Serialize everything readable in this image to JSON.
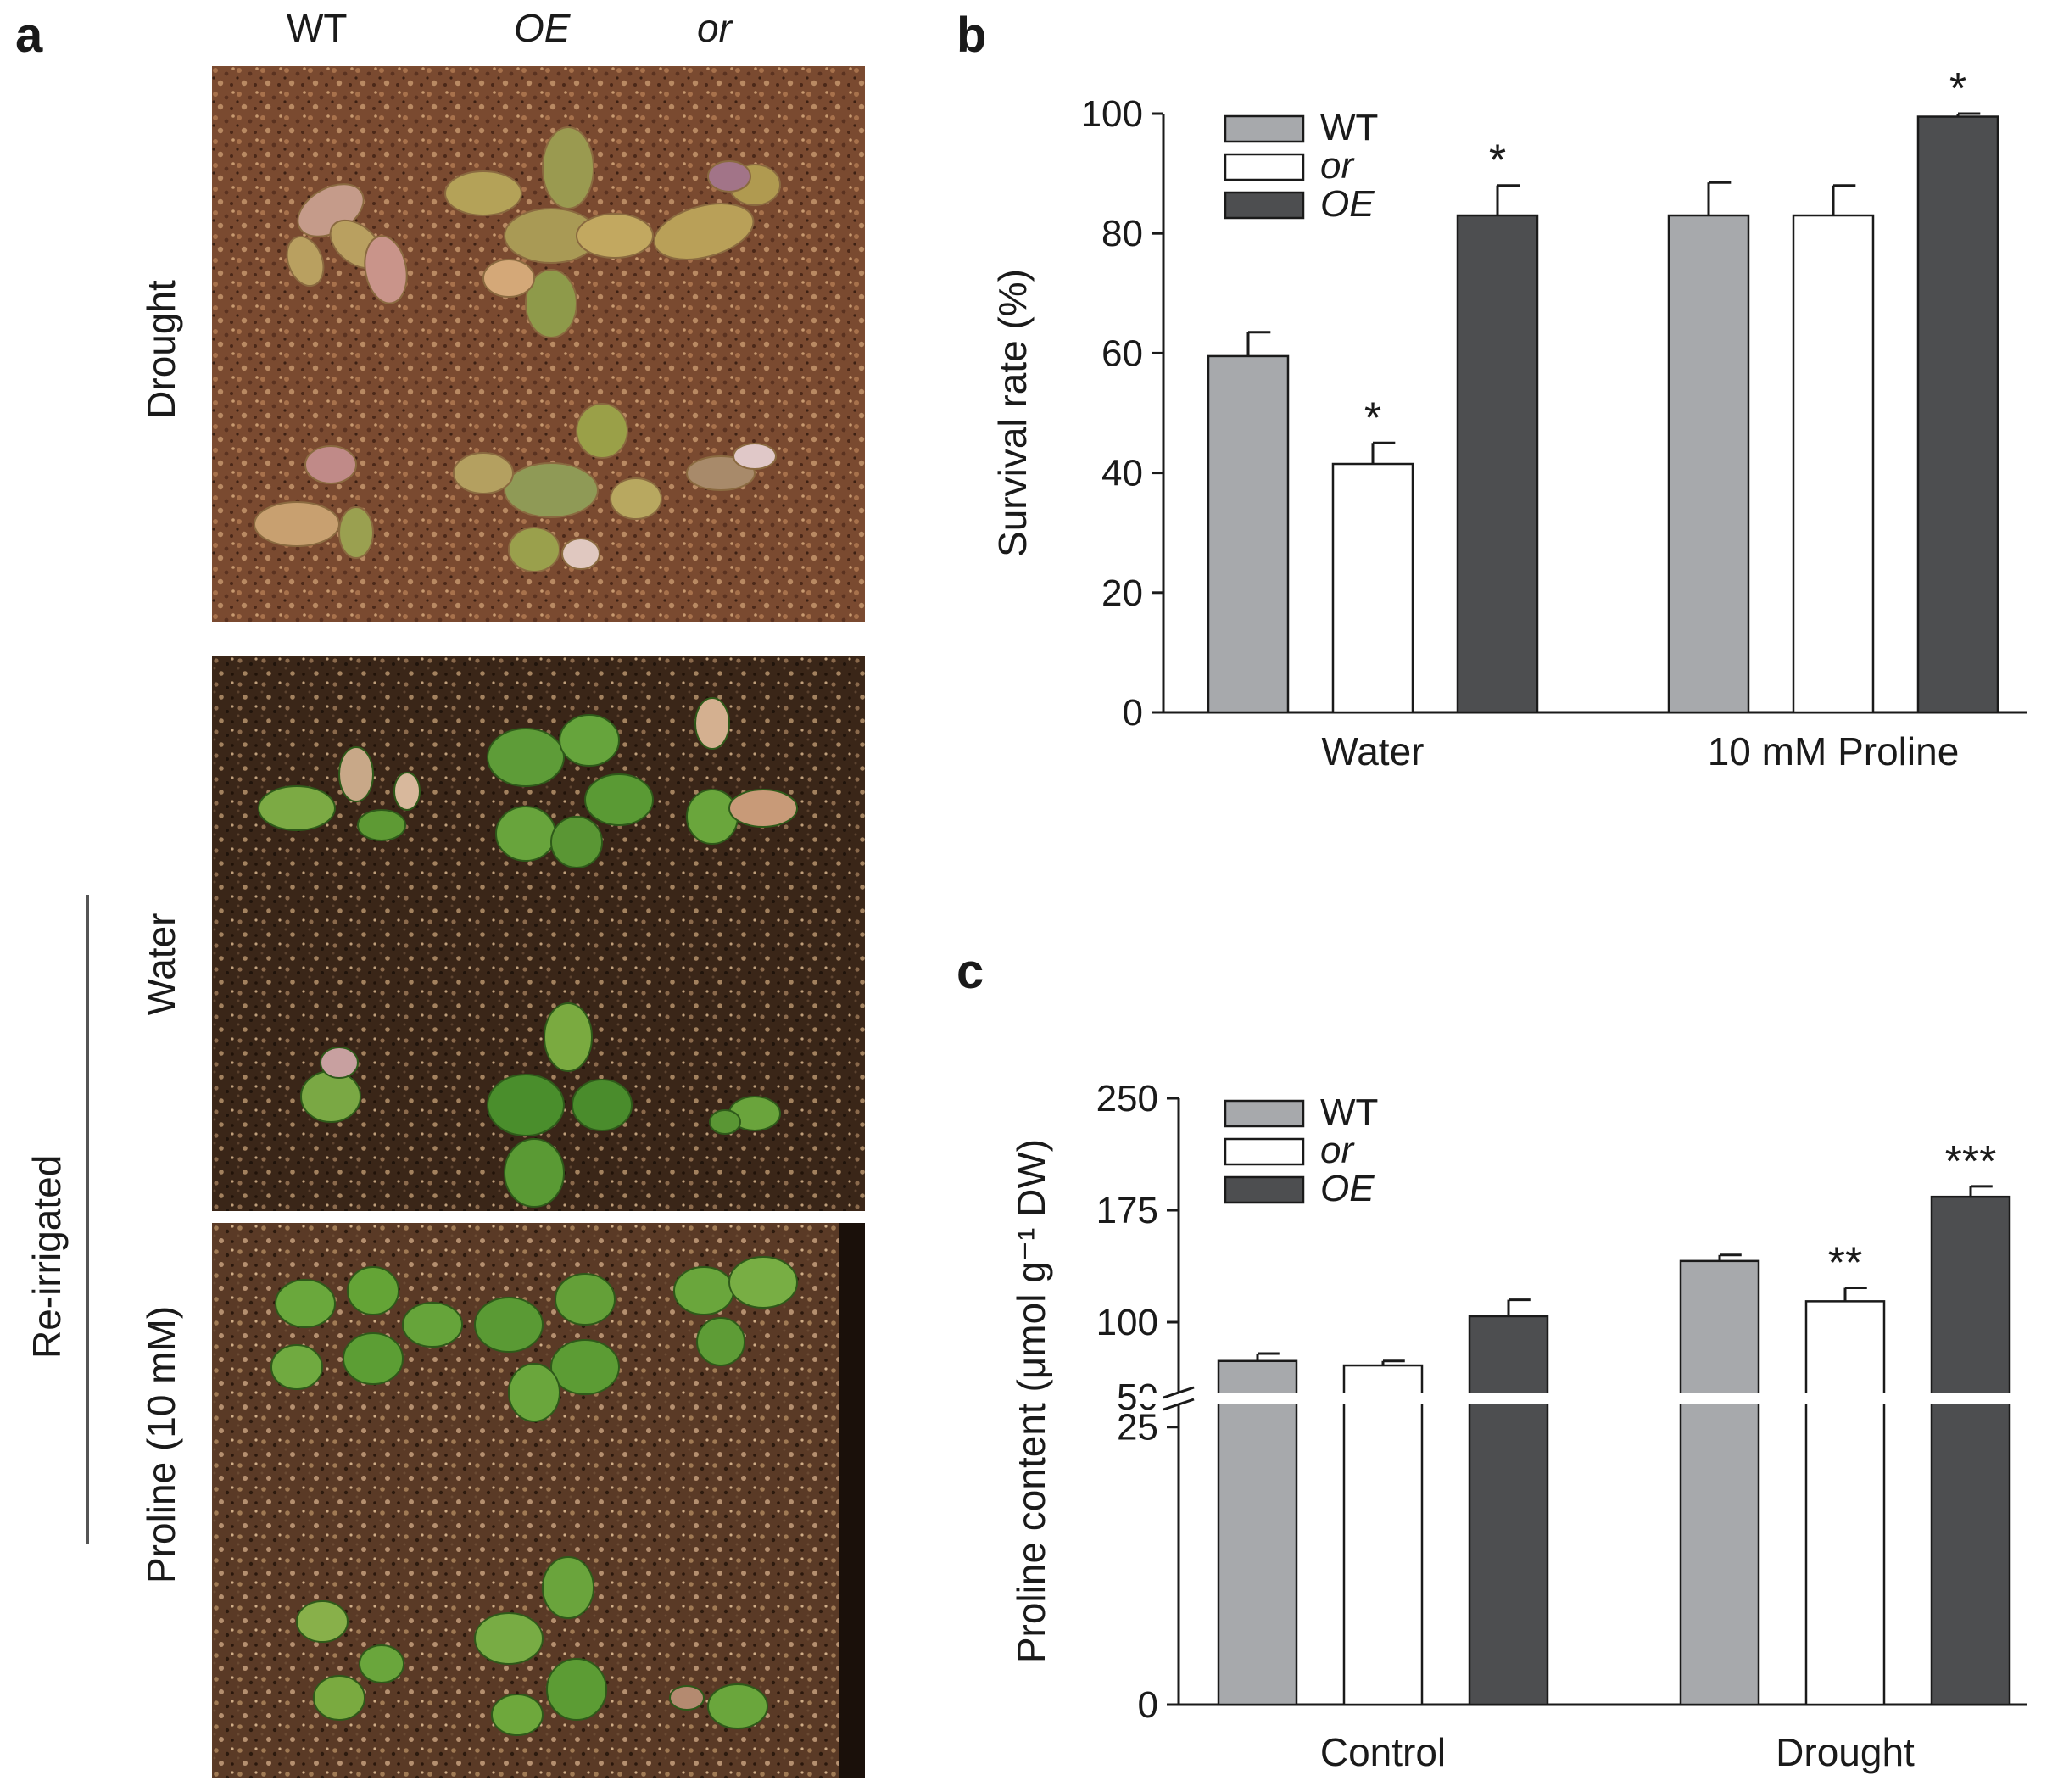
{
  "panels": {
    "a": "a",
    "b": "b",
    "c": "c"
  },
  "panel_a": {
    "column_labels": [
      "WT",
      "OE",
      "or"
    ],
    "row_labels": {
      "drought": "Drought",
      "re_irrigated": "Re-irrigated",
      "water": "Water",
      "proline": "Proline (10 mM)"
    }
  },
  "colors": {
    "WT": "#a7a9ac",
    "or": "#ffffff",
    "OE": "#4d4e50",
    "axis": "#1a1a1a"
  },
  "chart_data": [
    {
      "type": "bar",
      "panel": "b",
      "categories": [
        "Water",
        "10 mM Proline"
      ],
      "ylabel": "Survival rate (%)",
      "ylim": [
        0,
        100
      ],
      "yticks": [
        "0",
        "20",
        "40",
        "60",
        "80",
        "100"
      ],
      "legend": [
        "WT",
        "or",
        "OE"
      ],
      "legend_italic": [
        false,
        true,
        true
      ],
      "legend_position": "top-left",
      "series": [
        {
          "name": "WT",
          "values": [
            59.5,
            83
          ],
          "errors": [
            4,
            5.5
          ],
          "sig": [
            "",
            ""
          ]
        },
        {
          "name": "or",
          "values": [
            41.5,
            83
          ],
          "errors": [
            3.5,
            5
          ],
          "sig": [
            "*",
            ""
          ]
        },
        {
          "name": "OE",
          "values": [
            83,
            99.5
          ],
          "errors": [
            5,
            0.5
          ],
          "sig": [
            "*",
            "*"
          ]
        }
      ]
    },
    {
      "type": "bar",
      "panel": "c",
      "categories": [
        "Control",
        "Drought"
      ],
      "ylabel": "Proline content (μmol g⁻¹ DW)",
      "yticks": [
        "0",
        "25",
        "50",
        "100",
        "175",
        "250"
      ],
      "axis_break": [
        27.5,
        50
      ],
      "legend": [
        "WT",
        "or",
        "OE"
      ],
      "legend_italic": [
        false,
        true,
        true
      ],
      "legend_position": "top-left",
      "series": [
        {
          "name": "WT",
          "values": [
            74,
            141
          ],
          "errors": [
            5,
            4
          ],
          "sig": [
            "",
            ""
          ]
        },
        {
          "name": "or",
          "values": [
            71,
            114
          ],
          "errors": [
            3,
            9
          ],
          "sig": [
            "",
            "**"
          ]
        },
        {
          "name": "OE",
          "values": [
            104,
            184
          ],
          "errors": [
            11,
            7
          ],
          "sig": [
            "",
            "***"
          ]
        }
      ]
    }
  ]
}
